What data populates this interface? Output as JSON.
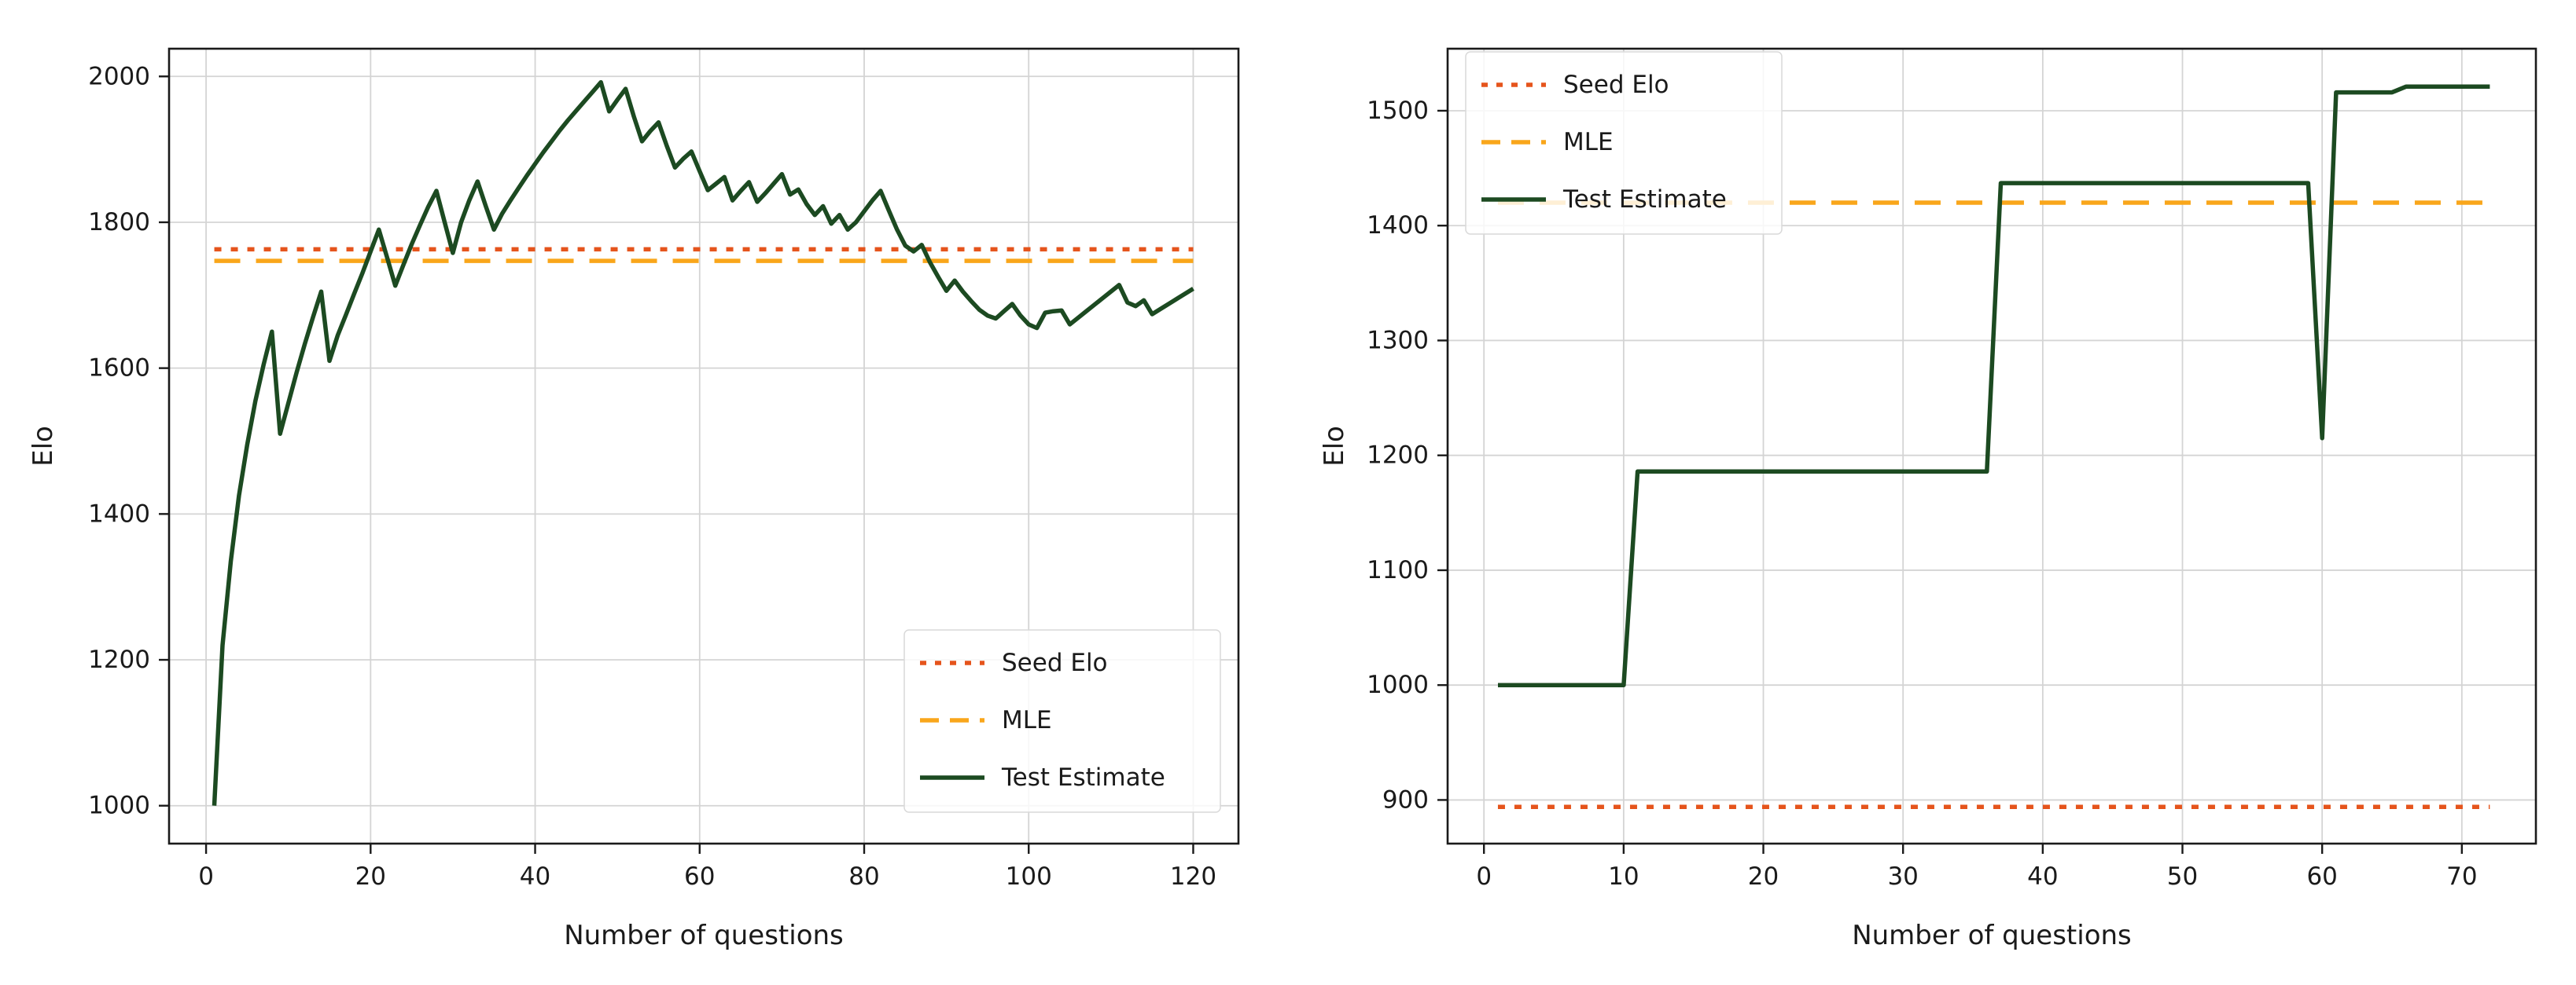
{
  "figure": {
    "background": "#ffffff",
    "text_color": "#1a1a1a",
    "grid_color": "#d4d4d4",
    "spine_color": "#1a1a1a",
    "seed_color": "#e5541c",
    "mle_color": "#f9a61b",
    "test_color": "#1c4a21"
  },
  "chart_data": [
    {
      "type": "line",
      "title": "",
      "xlabel": "Number of questions",
      "ylabel": "Elo",
      "x_ticks": [
        0,
        20,
        40,
        60,
        80,
        100,
        120
      ],
      "y_ticks": [
        1000,
        1200,
        1400,
        1600,
        1800,
        2000
      ],
      "xlim": [
        -4.5,
        125.5
      ],
      "ylim": [
        948,
        2038
      ],
      "grid": true,
      "legend_position": "lower right",
      "legend_entries": [
        "Seed Elo",
        "MLE",
        "Test Estimate"
      ],
      "series": [
        {
          "name": "Seed Elo",
          "type": "hline",
          "style": "dotted",
          "color": "#e5541c",
          "value": 1763,
          "x_range": [
            1,
            120
          ]
        },
        {
          "name": "MLE",
          "type": "hline",
          "style": "dashed",
          "color": "#f9a61b",
          "value": 1747,
          "x_range": [
            1,
            120
          ]
        },
        {
          "name": "Test Estimate",
          "type": "line",
          "style": "solid",
          "color": "#1c4a21",
          "x_range": [
            1,
            120
          ],
          "y": [
            1000,
            1220,
            1335,
            1425,
            1495,
            1555,
            1605,
            1650,
            1510,
            1552,
            1594,
            1633,
            1670,
            1705,
            1610,
            1645,
            1673,
            1702,
            1730,
            1760,
            1790,
            1752,
            1713,
            1742,
            1770,
            1796,
            1821,
            1843,
            1800,
            1758,
            1800,
            1830,
            1856,
            1822,
            1790,
            1812,
            1830,
            1847,
            1864,
            1880,
            1896,
            1911,
            1926,
            1940,
            1953,
            1966,
            1979,
            1992,
            1952,
            1968,
            1983,
            1945,
            1911,
            1925,
            1937,
            1905,
            1875,
            1887,
            1897,
            1870,
            1844,
            1853,
            1862,
            1830,
            1843,
            1855,
            1828,
            1840,
            1853,
            1866,
            1838,
            1845,
            1825,
            1810,
            1822,
            1798,
            1810,
            1790,
            1800,
            1815,
            1830,
            1843,
            1816,
            1790,
            1768,
            1760,
            1769,
            1745,
            1725,
            1706,
            1720,
            1705,
            1692,
            1680,
            1672,
            1668,
            1678,
            1688,
            1672,
            1660,
            1655,
            1676,
            1678,
            1679,
            1660,
            1669,
            1678,
            1687,
            1696,
            1705,
            1714,
            1690,
            1685,
            1693,
            1674,
            1681,
            1688,
            1695,
            1702,
            1709
          ]
        }
      ]
    },
    {
      "type": "line",
      "title": "",
      "xlabel": "Number of questions",
      "ylabel": "Elo",
      "x_ticks": [
        0,
        10,
        20,
        30,
        40,
        50,
        60,
        70
      ],
      "y_ticks": [
        900,
        1000,
        1100,
        1200,
        1300,
        1400,
        1500
      ],
      "xlim": [
        -2.6,
        75.3
      ],
      "ylim": [
        862,
        1554
      ],
      "grid": true,
      "legend_position": "upper left",
      "legend_entries": [
        "Seed Elo",
        "MLE",
        "Test Estimate"
      ],
      "series": [
        {
          "name": "Seed Elo",
          "type": "hline",
          "style": "dotted",
          "color": "#e5541c",
          "value": 894,
          "x_range": [
            1,
            72
          ]
        },
        {
          "name": "MLE",
          "type": "hline",
          "style": "dashed",
          "color": "#f9a61b",
          "value": 1420,
          "x_range": [
            1,
            72
          ]
        },
        {
          "name": "Test Estimate",
          "type": "line",
          "style": "solid",
          "color": "#1c4a21",
          "x_range": [
            1,
            72
          ],
          "y": [
            1000,
            1000,
            1000,
            1000,
            1000,
            1000,
            1000,
            1000,
            1000,
            1000,
            1186,
            1186,
            1186,
            1186,
            1186,
            1186,
            1186,
            1186,
            1186,
            1186,
            1186,
            1186,
            1186,
            1186,
            1186,
            1186,
            1186,
            1186,
            1186,
            1186,
            1186,
            1186,
            1186,
            1186,
            1186,
            1186,
            1437,
            1437,
            1437,
            1437,
            1437,
            1437,
            1437,
            1437,
            1437,
            1437,
            1437,
            1437,
            1437,
            1437,
            1437,
            1437,
            1437,
            1437,
            1437,
            1437,
            1437,
            1437,
            1437,
            1215,
            1516,
            1516,
            1516,
            1516,
            1516,
            1521,
            1521,
            1521,
            1521,
            1521,
            1521,
            1521
          ]
        }
      ]
    }
  ]
}
